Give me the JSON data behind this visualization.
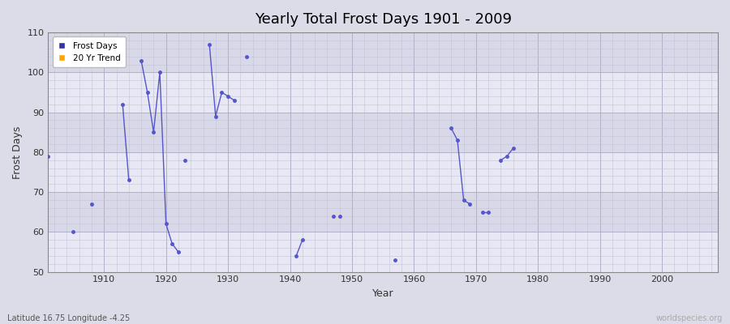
{
  "title": "Yearly Total Frost Days 1901 - 2009",
  "xlabel": "Year",
  "ylabel": "Frost Days",
  "xlim": [
    1901,
    2009
  ],
  "ylim": [
    50,
    110
  ],
  "yticks": [
    50,
    60,
    70,
    80,
    90,
    100,
    110
  ],
  "xticks": [
    1910,
    1920,
    1930,
    1940,
    1950,
    1960,
    1970,
    1980,
    1990,
    2000
  ],
  "line_color": "#5555cc",
  "bg_color": "#dcdce8",
  "plot_bg": "#e4e4ee",
  "band_light": "#e8e8f4",
  "band_dark": "#d8d8e8",
  "grid_color": "#c8c8d8",
  "bottom_left_label": "Latitude 16.75 Longitude -4.25",
  "bottom_right_label": "worldspecies.org",
  "frost_days": [
    [
      1901,
      79
    ],
    [
      1905,
      60
    ],
    [
      1908,
      67
    ],
    [
      1913,
      92
    ],
    [
      1914,
      73
    ],
    [
      1916,
      103
    ],
    [
      1917,
      95
    ],
    [
      1918,
      85
    ],
    [
      1919,
      100
    ],
    [
      1920,
      62
    ],
    [
      1921,
      57
    ],
    [
      1922,
      55
    ],
    [
      1923,
      78
    ],
    [
      1927,
      107
    ],
    [
      1928,
      89
    ],
    [
      1929,
      95
    ],
    [
      1930,
      94
    ],
    [
      1931,
      93
    ],
    [
      1933,
      104
    ],
    [
      1941,
      54
    ],
    [
      1942,
      58
    ],
    [
      1947,
      64
    ],
    [
      1948,
      64
    ],
    [
      1957,
      53
    ],
    [
      1966,
      86
    ],
    [
      1967,
      83
    ],
    [
      1968,
      68
    ],
    [
      1969,
      67
    ],
    [
      1971,
      65
    ],
    [
      1972,
      65
    ],
    [
      1974,
      78
    ],
    [
      1975,
      79
    ],
    [
      1976,
      81
    ]
  ],
  "connected_groups": [
    [
      1913,
      1914
    ],
    [
      1916,
      1917,
      1918,
      1919,
      1920,
      1921,
      1922
    ],
    [
      1927,
      1928,
      1929,
      1930,
      1931
    ],
    [
      1941,
      1942
    ],
    [
      1966,
      1967,
      1968,
      1969
    ],
    [
      1971,
      1972
    ],
    [
      1974,
      1975,
      1976
    ]
  ],
  "isolated": [
    1901,
    1905,
    1908,
    1923,
    1933,
    1947,
    1948,
    1957
  ]
}
